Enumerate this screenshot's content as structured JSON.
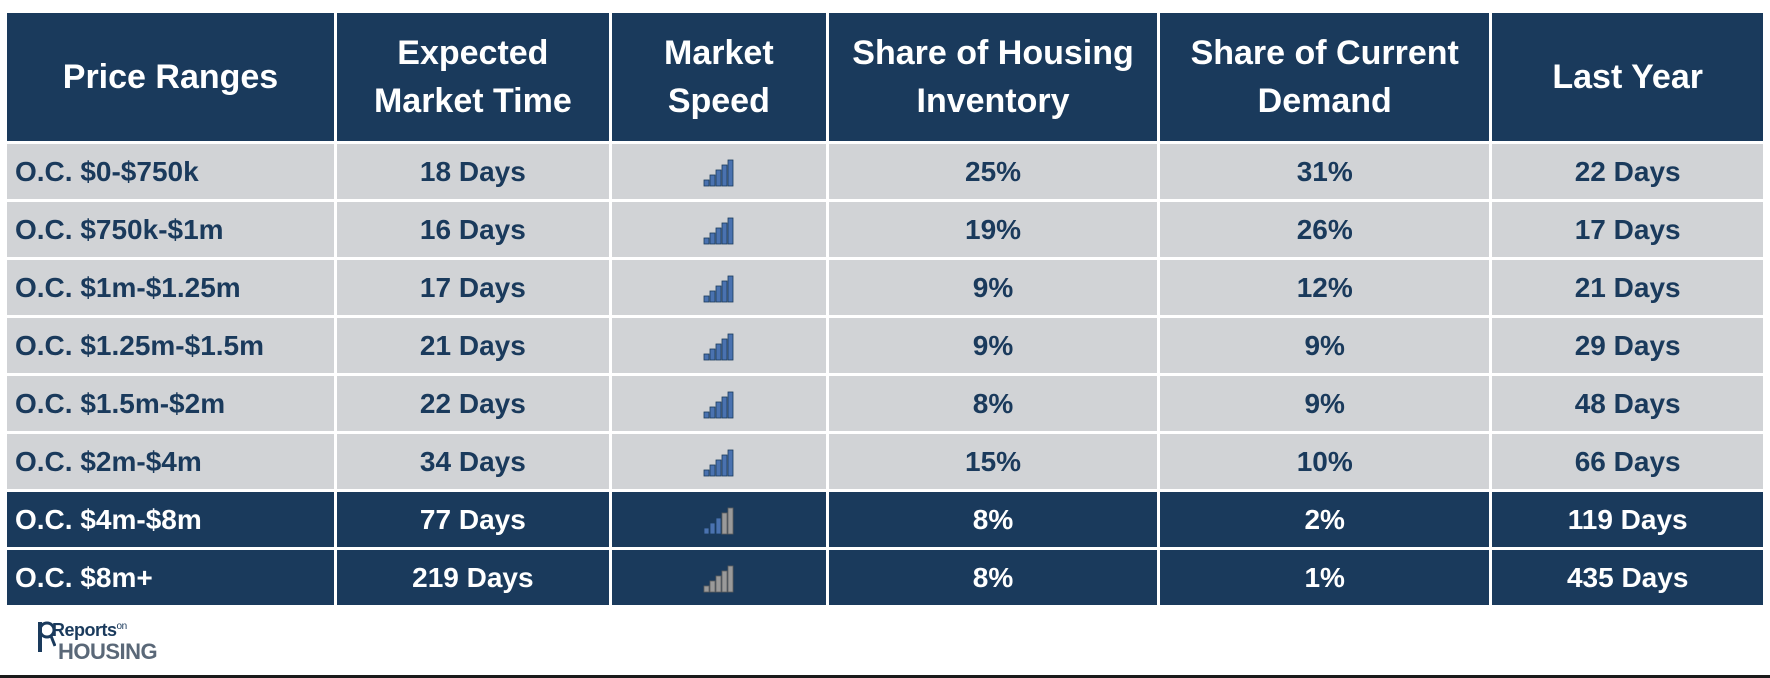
{
  "headers": {
    "range_line1": "Price Ranges",
    "time_line1": "Expected",
    "time_line2": "Market Time",
    "speed_line1": "Market",
    "speed_line2": "Speed",
    "inventory_line1": "Share of Housing",
    "inventory_line2": "Inventory",
    "demand_line1": "Share of Current",
    "demand_line2": "Demand",
    "last_year_line1": "Last Year"
  },
  "rows": [
    {
      "range": "O.C. $0-$750k",
      "market_time": "18 Days",
      "speed_level": 5,
      "inventory": "25%",
      "demand": "31%",
      "last_year": "22 Days"
    },
    {
      "range": "O.C. $750k-$1m",
      "market_time": "16 Days",
      "speed_level": 5,
      "inventory": "19%",
      "demand": "26%",
      "last_year": "17 Days"
    },
    {
      "range": "O.C. $1m-$1.25m",
      "market_time": "17 Days",
      "speed_level": 5,
      "inventory": "9%",
      "demand": "12%",
      "last_year": "21 Days"
    },
    {
      "range": "O.C. $1.25m-$1.5m",
      "market_time": "21 Days",
      "speed_level": 5,
      "inventory": "9%",
      "demand": "9%",
      "last_year": "29 Days"
    },
    {
      "range": "O.C. $1.5m-$2m",
      "market_time": "22 Days",
      "speed_level": 5,
      "inventory": "8%",
      "demand": "9%",
      "last_year": "48 Days"
    },
    {
      "range": "O.C. $2m-$4m",
      "market_time": "34 Days",
      "speed_level": 5,
      "inventory": "15%",
      "demand": "10%",
      "last_year": "66 Days"
    },
    {
      "range": "O.C. $4m-$8m",
      "market_time": "77 Days",
      "speed_level": 3,
      "inventory": "8%",
      "demand": "2%",
      "last_year": "119 Days"
    },
    {
      "range": "O.C. $8m+",
      "market_time": "219 Days",
      "speed_level": 0,
      "inventory": "8%",
      "demand": "1%",
      "last_year": "435 Days"
    }
  ],
  "speed_icon": {
    "icon": "signal-bars-icon",
    "total_bars": 5,
    "active_color": "#4a72b0",
    "inactive_color": "#9a9a9a",
    "border_color": "#1a3a5c"
  },
  "logo": {
    "top_text": "Reports",
    "on_text": "on",
    "bottom_text": "HOUSING"
  },
  "colors": {
    "header_bg": "#1a3a5c",
    "light_row_bg": "#d1d3d6",
    "dark_row_bg": "#1a3a5c"
  }
}
